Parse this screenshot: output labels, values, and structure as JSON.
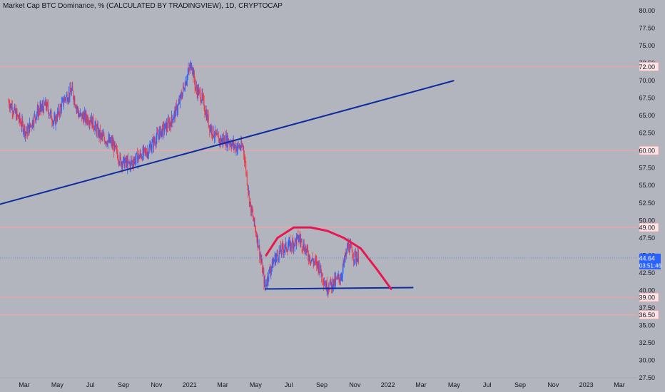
{
  "header": {
    "title": "Market Cap BTC Dominance, % (CALCULATED BY TRADINGVIEW), 1D, CRYPTOCAP"
  },
  "colors": {
    "background": "#b2b5be",
    "candle_up": "#2962ff",
    "candle_down": "#f23645",
    "trendline": "#0d2b9e",
    "arc": "#e8174f",
    "hline": "#f3a3a3",
    "price_line": "#5b8be8",
    "price_badge": "#2962ff"
  },
  "chart_data": {
    "type": "candlestick",
    "ylim": [
      27.5,
      80.0
    ],
    "y_ticks": [
      "80.00",
      "77.50",
      "75.00",
      "72.50",
      "70.00",
      "67.50",
      "65.00",
      "62.50",
      "60.00",
      "57.50",
      "55.00",
      "52.50",
      "50.00",
      "47.50",
      "45.00",
      "42.50",
      "40.00",
      "37.50",
      "35.00",
      "32.50",
      "30.00",
      "27.50"
    ],
    "x_ticks": [
      "Mar",
      "May",
      "Jul",
      "Sep",
      "Nov",
      "2021",
      "Mar",
      "May",
      "Jul",
      "Sep",
      "Nov",
      "2022",
      "Mar",
      "May",
      "Jul",
      "Sep",
      "Nov",
      "2023",
      "Mar"
    ],
    "current_price": {
      "value": "44.64",
      "countdown": "03:51:46"
    },
    "horizontal_levels": [
      {
        "value": 72.0,
        "label": "72.00"
      },
      {
        "value": 60.0,
        "label": "60.00"
      },
      {
        "value": 49.0,
        "label": "49.00"
      },
      {
        "value": 39.0,
        "label": "39.00"
      },
      {
        "value": 36.5,
        "label": "36.50"
      }
    ],
    "price_path": [
      [
        "2020-02-01",
        67.0
      ],
      [
        "2020-02-20",
        64.5
      ],
      [
        "2020-03-05",
        62.5
      ],
      [
        "2020-03-25",
        65.5
      ],
      [
        "2020-04-10",
        66.5
      ],
      [
        "2020-04-25",
        64.0
      ],
      [
        "2020-05-15",
        67.5
      ],
      [
        "2020-05-28",
        68.5
      ],
      [
        "2020-06-10",
        65.0
      ],
      [
        "2020-07-01",
        64.5
      ],
      [
        "2020-07-20",
        62.0
      ],
      [
        "2020-08-10",
        61.0
      ],
      [
        "2020-08-25",
        58.5
      ],
      [
        "2020-09-10",
        58.0
      ],
      [
        "2020-09-25",
        59.0
      ],
      [
        "2020-10-15",
        60.0
      ],
      [
        "2020-11-05",
        62.5
      ],
      [
        "2020-11-25",
        64.0
      ],
      [
        "2020-12-10",
        66.5
      ],
      [
        "2020-12-25",
        70.5
      ],
      [
        "2021-01-03",
        72.5
      ],
      [
        "2021-01-10",
        69.0
      ],
      [
        "2021-01-22",
        67.5
      ],
      [
        "2021-02-05",
        63.5
      ],
      [
        "2021-02-20",
        61.5
      ],
      [
        "2021-03-10",
        61.5
      ],
      [
        "2021-03-25",
        60.5
      ],
      [
        "2021-04-08",
        60.5
      ],
      [
        "2021-04-20",
        52.5
      ],
      [
        "2021-05-05",
        47.0
      ],
      [
        "2021-05-18",
        40.5
      ],
      [
        "2021-05-25",
        42.5
      ],
      [
        "2021-06-05",
        44.5
      ],
      [
        "2021-06-20",
        46.0
      ],
      [
        "2021-07-05",
        46.5
      ],
      [
        "2021-07-20",
        47.5
      ],
      [
        "2021-08-10",
        44.5
      ],
      [
        "2021-08-25",
        43.5
      ],
      [
        "2021-09-08",
        40.5
      ],
      [
        "2021-09-20",
        41.0
      ],
      [
        "2021-10-05",
        42.0
      ],
      [
        "2021-10-18",
        46.5
      ],
      [
        "2021-10-28",
        45.0
      ],
      [
        "2021-11-06",
        44.64
      ]
    ],
    "trendlines": [
      {
        "start": [
          "2020-01-01",
          52.0
        ],
        "end": [
          "2022-05-01",
          70.0
        ],
        "label": ""
      },
      {
        "start": [
          "2021-05-18",
          40.2
        ],
        "end": [
          "2022-02-15",
          40.4
        ],
        "label": ""
      }
    ],
    "arc": [
      [
        "2021-05-20",
        45.0
      ],
      [
        "2021-06-10",
        47.5
      ],
      [
        "2021-07-10",
        49.0
      ],
      [
        "2021-08-10",
        49.0
      ],
      [
        "2021-09-10",
        48.5
      ],
      [
        "2021-10-10",
        47.5
      ],
      [
        "2021-11-10",
        46.0
      ],
      [
        "2021-12-10",
        43.0
      ],
      [
        "2022-01-05",
        40.2
      ]
    ]
  }
}
